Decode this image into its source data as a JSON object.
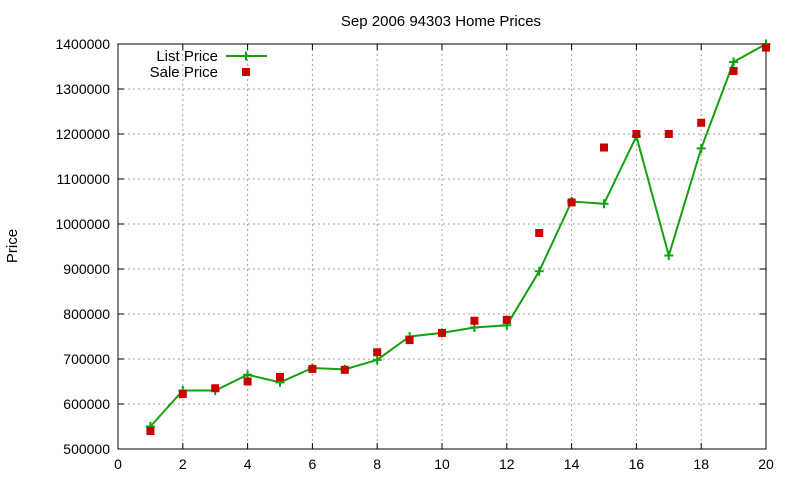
{
  "colors": {
    "list_price": "#13a10e",
    "sale_price": "#c80000",
    "grid": "#a0a0a0",
    "axis": "#000000"
  },
  "chart_data": {
    "type": "line",
    "title": "Sep 2006 94303 Home Prices",
    "xlabel": "",
    "ylabel": "Price",
    "xlim": [
      0,
      20
    ],
    "ylim": [
      500000,
      1400000
    ],
    "x_ticks": [
      0,
      2,
      4,
      6,
      8,
      10,
      12,
      14,
      16,
      18,
      20
    ],
    "y_ticks": [
      500000,
      600000,
      700000,
      800000,
      900000,
      1000000,
      1100000,
      1200000,
      1300000,
      1400000
    ],
    "grid": true,
    "legend_position": "top-left",
    "series": [
      {
        "name": "List Price",
        "style": "line-with-plus-markers",
        "color": "#13a10e",
        "x": [
          1,
          2,
          3,
          4,
          5,
          6,
          7,
          8,
          9,
          10,
          11,
          12,
          13,
          14,
          15,
          16,
          17,
          18,
          19,
          20
        ],
        "y": [
          550000,
          630000,
          630000,
          665000,
          648000,
          680000,
          677000,
          698000,
          750000,
          758000,
          770000,
          775000,
          895000,
          1050000,
          1045000,
          1195000,
          930000,
          1168000,
          1360000,
          1400000
        ]
      },
      {
        "name": "Sale Price",
        "style": "square-markers",
        "color": "#c80000",
        "x": [
          1,
          2,
          3,
          4,
          5,
          6,
          7,
          8,
          9,
          10,
          11,
          12,
          13,
          14,
          15,
          16,
          17,
          18,
          19,
          20
        ],
        "y": [
          540000,
          622000,
          635000,
          650000,
          660000,
          678000,
          676000,
          715000,
          742000,
          758000,
          785000,
          787000,
          980000,
          1048000,
          1170000,
          1200000,
          1200000,
          1225000,
          1340000,
          1392000
        ]
      }
    ]
  }
}
